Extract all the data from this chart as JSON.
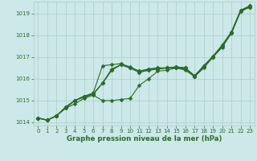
{
  "x": [
    0,
    1,
    2,
    3,
    4,
    5,
    6,
    7,
    8,
    9,
    10,
    11,
    12,
    13,
    14,
    15,
    16,
    17,
    18,
    19,
    20,
    21,
    22,
    23
  ],
  "lines": [
    [
      1014.2,
      1014.1,
      1014.3,
      1014.65,
      1015.0,
      1015.2,
      1015.3,
      1015.8,
      1016.4,
      1016.65,
      1016.5,
      1016.3,
      1016.4,
      1016.45,
      1016.5,
      1016.5,
      1016.45,
      1016.1,
      1016.55,
      1017.0,
      1017.5,
      1018.1,
      1019.15,
      1019.3
    ],
    [
      1014.2,
      1014.1,
      1014.3,
      1014.65,
      1014.85,
      1015.1,
      1015.25,
      1015.0,
      1015.0,
      1015.05,
      1015.1,
      1015.7,
      1016.0,
      1016.35,
      1016.4,
      1016.5,
      1016.4,
      1016.1,
      1016.5,
      1017.0,
      1017.45,
      1018.1,
      1019.1,
      1019.3
    ],
    [
      1014.2,
      1014.1,
      1014.3,
      1014.7,
      1015.0,
      1015.15,
      1015.3,
      1015.8,
      1016.4,
      1016.65,
      1016.5,
      1016.3,
      1016.4,
      1016.45,
      1016.5,
      1016.5,
      1016.5,
      1016.1,
      1016.6,
      1017.0,
      1017.5,
      1018.1,
      1019.1,
      1019.3
    ],
    [
      1014.2,
      1014.1,
      1014.3,
      1014.7,
      1015.0,
      1015.2,
      1015.35,
      1016.6,
      1016.65,
      1016.7,
      1016.55,
      1016.35,
      1016.45,
      1016.5,
      1016.5,
      1016.55,
      1016.5,
      1016.15,
      1016.6,
      1017.05,
      1017.55,
      1018.15,
      1019.15,
      1019.35
    ],
    [
      1014.2,
      1014.1,
      1014.3,
      1014.7,
      1015.0,
      1015.2,
      1015.3,
      1015.8,
      1016.45,
      1016.65,
      1016.5,
      1016.35,
      1016.45,
      1016.5,
      1016.5,
      1016.55,
      1016.5,
      1016.1,
      1016.6,
      1017.0,
      1017.55,
      1018.15,
      1019.15,
      1019.35
    ]
  ],
  "ylim": [
    1013.85,
    1019.55
  ],
  "yticks": [
    1014,
    1015,
    1016,
    1017,
    1018,
    1019
  ],
  "xlim": [
    -0.5,
    23.5
  ],
  "xticks": [
    0,
    1,
    2,
    3,
    4,
    5,
    6,
    7,
    8,
    9,
    10,
    11,
    12,
    13,
    14,
    15,
    16,
    17,
    18,
    19,
    20,
    21,
    22,
    23
  ],
  "xlabel": "Graphe pression niveau de la mer (hPa)",
  "line_color": "#2d6a2d",
  "bg_color": "#cce8e8",
  "grid_color": "#aacccc",
  "markersize": 2.5,
  "linewidth": 0.8,
  "tick_fontsize": 5.0,
  "xlabel_fontsize": 6.2
}
